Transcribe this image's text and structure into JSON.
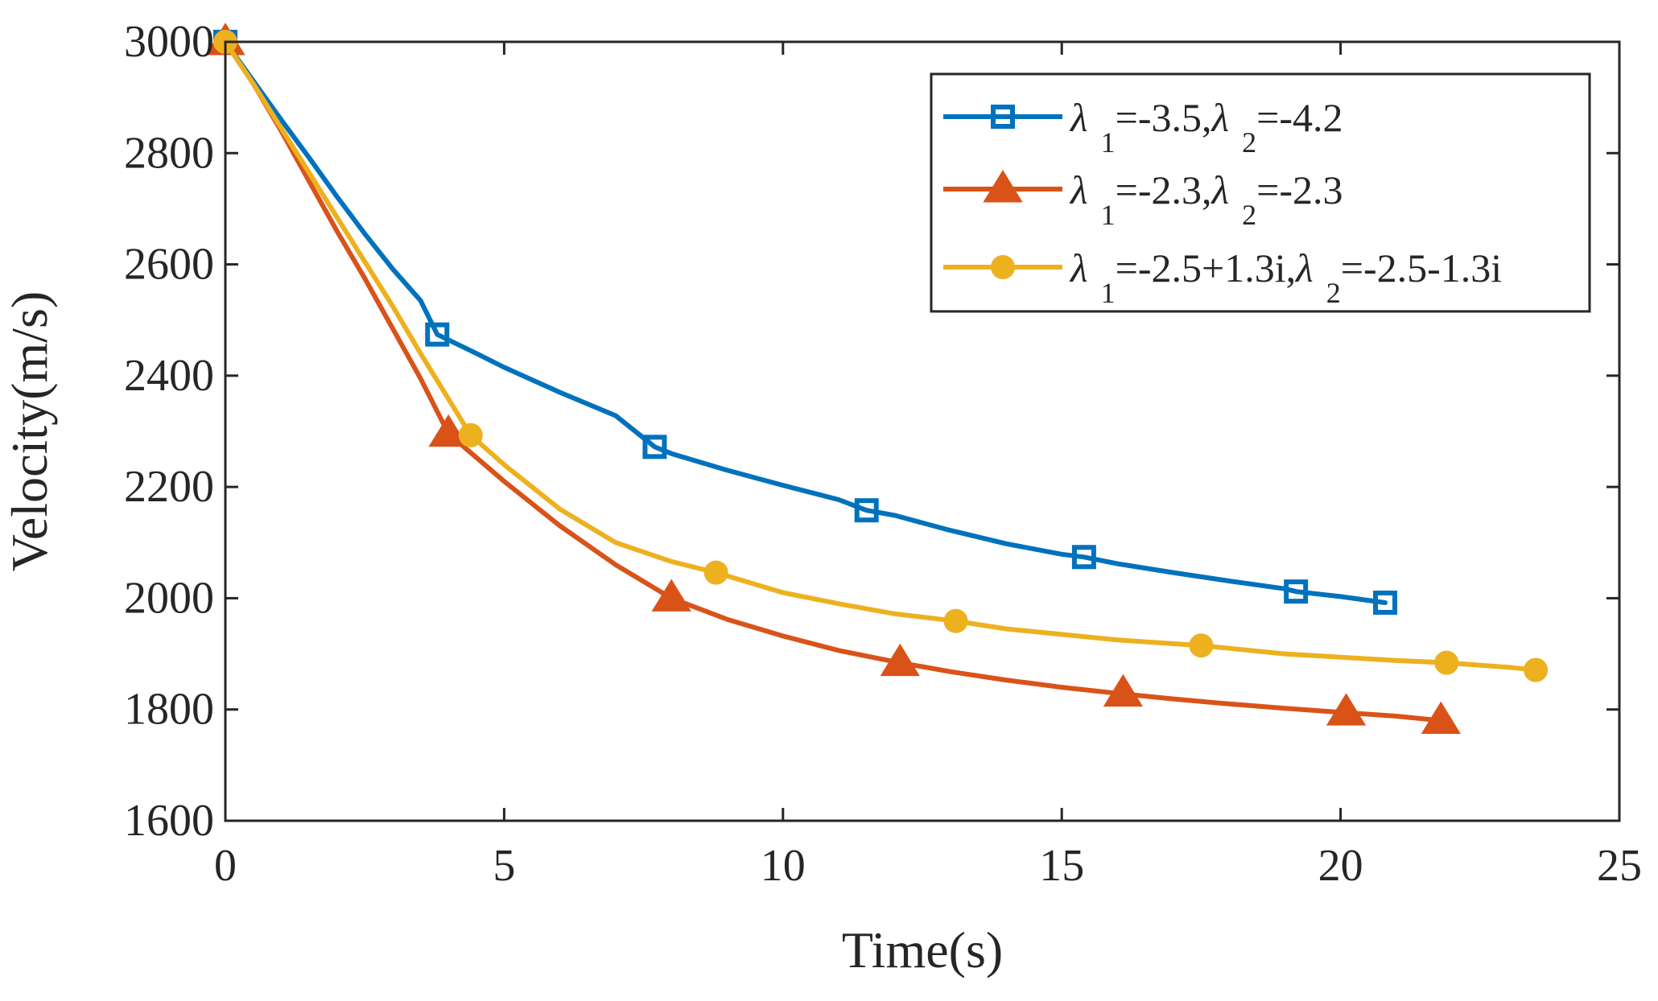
{
  "chart_data": {
    "type": "line",
    "title": "",
    "xlabel": "Time(s)",
    "ylabel": "Velocity(m/s)",
    "xlim": [
      0,
      25
    ],
    "ylim": [
      1600,
      3000
    ],
    "xticks": [
      0,
      5,
      10,
      15,
      20,
      25
    ],
    "yticks": [
      1600,
      1800,
      2000,
      2200,
      2400,
      2600,
      2800,
      3000
    ],
    "grid": false,
    "legend_position": "top-right",
    "series": [
      {
        "name": "λ1=-3.5,λ2=-4.2",
        "legend": {
          "l1": "λ",
          "s1": "1",
          "v1": "=-3.5,",
          "l2": "λ",
          "s2": "2",
          "v2": "=-4.2"
        },
        "color": "#0072BD",
        "marker": "square",
        "curve": [
          [
            0,
            3000
          ],
          [
            0.5,
            2930
          ],
          [
            1,
            2860
          ],
          [
            1.5,
            2792
          ],
          [
            2,
            2722
          ],
          [
            2.5,
            2655
          ],
          [
            3,
            2592
          ],
          [
            3.5,
            2535
          ],
          [
            3.8,
            2474
          ],
          [
            4.5,
            2440
          ],
          [
            5,
            2415
          ],
          [
            6,
            2370
          ],
          [
            7,
            2328
          ],
          [
            7.7,
            2272
          ],
          [
            8,
            2260
          ],
          [
            9,
            2230
          ],
          [
            10,
            2203
          ],
          [
            11,
            2177
          ],
          [
            11.5,
            2158
          ],
          [
            12,
            2149
          ],
          [
            13,
            2122
          ],
          [
            14,
            2098
          ],
          [
            15,
            2079
          ],
          [
            15.4,
            2074
          ],
          [
            16,
            2062
          ],
          [
            17,
            2046
          ],
          [
            18,
            2031
          ],
          [
            19,
            2017
          ],
          [
            19.2,
            2012
          ],
          [
            20,
            2003
          ],
          [
            20.8,
            1992
          ]
        ],
        "markers": [
          [
            0,
            3000
          ],
          [
            3.8,
            2474
          ],
          [
            7.7,
            2272
          ],
          [
            11.5,
            2158
          ],
          [
            15.4,
            2074
          ],
          [
            19.2,
            2012
          ],
          [
            20.8,
            1992
          ]
        ]
      },
      {
        "name": "λ1=-2.3,λ2=-2.3",
        "legend": {
          "l1": "λ",
          "s1": "1",
          "v1": "=-2.3,",
          "l2": "λ",
          "s2": "2",
          "v2": "=-2.3"
        },
        "color": "#D95319",
        "marker": "triangle",
        "curve": [
          [
            0,
            3000
          ],
          [
            0.5,
            2925
          ],
          [
            1,
            2840
          ],
          [
            1.5,
            2750
          ],
          [
            2,
            2660
          ],
          [
            2.5,
            2575
          ],
          [
            3,
            2485
          ],
          [
            3.5,
            2395
          ],
          [
            4,
            2296
          ],
          [
            5,
            2210
          ],
          [
            6,
            2130
          ],
          [
            7,
            2060
          ],
          [
            8,
            2000
          ],
          [
            9,
            1962
          ],
          [
            10,
            1932
          ],
          [
            11,
            1906
          ],
          [
            12,
            1886
          ],
          [
            13,
            1868
          ],
          [
            14,
            1853
          ],
          [
            15,
            1840
          ],
          [
            16,
            1829
          ],
          [
            17,
            1819
          ],
          [
            18,
            1810
          ],
          [
            19,
            1802
          ],
          [
            20,
            1795
          ],
          [
            21,
            1788
          ],
          [
            21.8,
            1780
          ]
        ],
        "markers": [
          [
            0,
            3000
          ],
          [
            4,
            2296
          ],
          [
            8,
            2000
          ],
          [
            12.1,
            1884
          ],
          [
            16.1,
            1829
          ],
          [
            20.1,
            1795
          ],
          [
            21.8,
            1780
          ]
        ]
      },
      {
        "name": "λ1=-2.5+1.3i,λ2=-2.5-1.3i",
        "legend": {
          "l1": "λ",
          "s1": "1",
          "v1": "=-2.5+1.3i,",
          "l2": "λ",
          "s2": "2",
          "v2": "=-2.5-1.3i"
        },
        "color": "#EDB120",
        "marker": "circle",
        "curve": [
          [
            0,
            3000
          ],
          [
            0.5,
            2925
          ],
          [
            1,
            2845
          ],
          [
            1.5,
            2765
          ],
          [
            2,
            2685
          ],
          [
            2.5,
            2605
          ],
          [
            3,
            2525
          ],
          [
            3.5,
            2440
          ],
          [
            4.4,
            2293
          ],
          [
            5,
            2240
          ],
          [
            6,
            2160
          ],
          [
            7,
            2100
          ],
          [
            8,
            2066
          ],
          [
            8.8,
            2046
          ],
          [
            10,
            2010
          ],
          [
            11,
            1990
          ],
          [
            12,
            1972
          ],
          [
            13.1,
            1959
          ],
          [
            14,
            1945
          ],
          [
            15,
            1935
          ],
          [
            16,
            1925
          ],
          [
            17.5,
            1915
          ],
          [
            18,
            1910
          ],
          [
            19,
            1900
          ],
          [
            20,
            1894
          ],
          [
            21,
            1888
          ],
          [
            21.9,
            1884
          ],
          [
            23,
            1876
          ],
          [
            23.5,
            1871
          ]
        ],
        "markers": [
          [
            0,
            3000
          ],
          [
            4.4,
            2293
          ],
          [
            8.8,
            2046
          ],
          [
            13.1,
            1959
          ],
          [
            17.5,
            1915
          ],
          [
            21.9,
            1884
          ],
          [
            23.5,
            1871
          ]
        ]
      }
    ]
  }
}
